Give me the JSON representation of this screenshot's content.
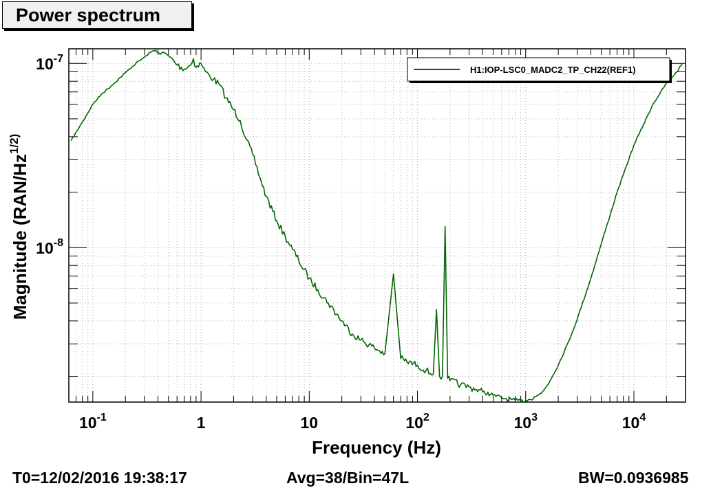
{
  "title": "Power spectrum",
  "footer": {
    "t0": "T0=12/02/2016 19:38:17",
    "avg": "Avg=38/Bin=47L",
    "bw": "BW=0.0936985"
  },
  "colors": {
    "series": "#006400",
    "grid": "#b0b0b0",
    "axis": "#000000"
  },
  "chart_data": {
    "type": "line",
    "title": "Power spectrum",
    "xlabel": "Frequency (Hz)",
    "ylabel": "Magnitude (RAN/Hz^(1/2))",
    "xscale": "log",
    "yscale": "log",
    "xlim": [
      0.06,
      30000
    ],
    "ylim": [
      1.45e-09,
      1.2e-07
    ],
    "grid": true,
    "legend_position": "top-right",
    "x_tick_labels": [
      {
        "value": 0.1,
        "base": "10",
        "exp": "-1"
      },
      {
        "value": 1,
        "base": "1",
        "exp": ""
      },
      {
        "value": 10,
        "base": "10",
        "exp": ""
      },
      {
        "value": 100,
        "base": "10",
        "exp": "2"
      },
      {
        "value": 1000,
        "base": "10",
        "exp": "3"
      },
      {
        "value": 10000,
        "base": "10",
        "exp": "4"
      }
    ],
    "y_tick_labels": [
      {
        "value": 1e-07,
        "base": "10",
        "exp": "-7"
      },
      {
        "value": 1e-08,
        "base": "10",
        "exp": "-8"
      }
    ],
    "series": [
      {
        "name": "H1:IOP-LSC0_MADC2_TP_CH22(REF1)",
        "x": [
          0.063,
          0.08,
          0.1,
          0.12,
          0.15,
          0.2,
          0.25,
          0.3,
          0.35,
          0.38,
          0.42,
          0.45,
          0.5,
          0.55,
          0.6,
          0.7,
          0.8,
          0.85,
          0.9,
          1.0,
          1.1,
          1.2,
          1.3,
          1.5,
          1.7,
          2.0,
          2.3,
          2.6,
          3.0,
          3.5,
          4.0,
          5.0,
          6.0,
          7.0,
          8.0,
          10,
          12,
          15,
          20,
          25,
          30,
          40,
          50,
          60,
          70,
          80,
          100,
          120,
          140,
          150,
          160,
          170,
          180,
          190,
          200,
          250,
          300,
          350,
          400,
          500,
          600,
          700,
          800,
          900,
          1000,
          1100,
          1200,
          1400,
          1600,
          2000,
          2500,
          3000,
          4000,
          5000,
          7000,
          10000,
          15000,
          20000,
          25000,
          28000
        ],
        "y": [
          3.8e-08,
          4.8e-08,
          6e-08,
          6.8e-08,
          7.6e-08,
          8.9e-08,
          1e-07,
          1.08e-07,
          1.16e-07,
          1.18e-07,
          1.12e-07,
          1.15e-07,
          1.1e-07,
          1.05e-07,
          9.8e-08,
          9.3e-08,
          9.8e-08,
          1.06e-07,
          9.5e-08,
          1e-07,
          9e-08,
          8.6e-08,
          8.2e-08,
          7.6e-08,
          6.5e-08,
          5.6e-08,
          4.9e-08,
          3.9e-08,
          3.2e-08,
          2.4e-08,
          1.9e-08,
          1.4e-08,
          1.15e-08,
          9.8e-09,
          8.5e-09,
          6.8e-09,
          5.9e-09,
          5e-09,
          4e-09,
          3.4e-09,
          3.15e-09,
          2.85e-09,
          2.65e-09,
          7.2e-09,
          2.5e-09,
          2.4e-09,
          2.3e-09,
          2.15e-09,
          2.05e-09,
          4.6e-09,
          2e-09,
          2e-09,
          1.3e-08,
          1.95e-09,
          1.9e-09,
          1.8e-09,
          1.75e-09,
          1.7e-09,
          1.65e-09,
          1.58e-09,
          1.53e-09,
          1.5e-09,
          1.48e-09,
          1.47e-09,
          1.48e-09,
          1.5e-09,
          1.55e-09,
          1.62e-09,
          1.8e-09,
          2.3e-09,
          3.1e-09,
          4.1e-09,
          6.8e-09,
          1.05e-08,
          2e-08,
          3.6e-08,
          6e-08,
          7.8e-08,
          9e-08,
          1e-07
        ]
      }
    ]
  }
}
